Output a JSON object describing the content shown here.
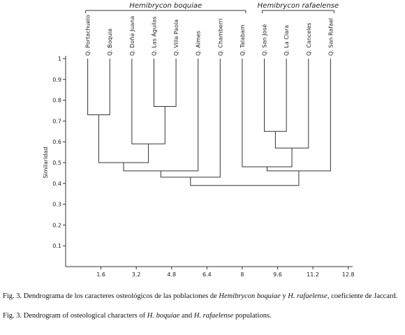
{
  "chart_data": {
    "type": "dendrogram",
    "ylabel": "Similaridad",
    "leaves": [
      "Q. Portachuelo",
      "Q. Boquia",
      "Q. Doña Juana",
      "Q. Las Águilas",
      "Q. Villa Paola",
      "Q. Aimes",
      "Q. Chamberri",
      "Q. Talabam",
      "Q. San José",
      "Q. La Clara",
      "Q. Canceles",
      "Q. San Rafael"
    ],
    "merges": [
      {
        "children": [
          0,
          1
        ],
        "height": 0.73
      },
      {
        "children": [
          3,
          4
        ],
        "height": 0.77
      },
      {
        "children": [
          2,
          13
        ],
        "height": 0.59
      },
      {
        "children": [
          12,
          14
        ],
        "height": 0.5
      },
      {
        "children": [
          15,
          5
        ],
        "height": 0.46
      },
      {
        "children": [
          16,
          6
        ],
        "height": 0.43
      },
      {
        "children": [
          8,
          9
        ],
        "height": 0.65
      },
      {
        "children": [
          18,
          10
        ],
        "height": 0.57
      },
      {
        "children": [
          7,
          19
        ],
        "height": 0.48
      },
      {
        "children": [
          20,
          11
        ],
        "height": 0.46
      },
      {
        "children": [
          17,
          21
        ],
        "height": 0.39
      }
    ],
    "groups": [
      {
        "label": "Hemibrycon boquiae",
        "first": 0,
        "last": 7
      },
      {
        "label": "Hemibrycon rafaelense",
        "first": 8,
        "last": 11
      }
    ],
    "xlim": [
      0,
      13
    ],
    "xticks": [
      1.6,
      3.2,
      4.8,
      6.4,
      8,
      9.6,
      11.2,
      12.8
    ],
    "ylim": [
      0,
      1
    ],
    "yticks": [
      0.1,
      0.2,
      0.3,
      0.4,
      0.5,
      0.6,
      0.7,
      0.8,
      0.9,
      1
    ]
  },
  "captions": [
    {
      "segments": [
        "Fig. 3. Dendrograma de los caracteres osteológicos de las poblaciones de ",
        "Hemibrycon boquiae",
        " y ",
        "H. rafaelense",
        ", coeficiente de Jaccard."
      ]
    },
    {
      "segments": [
        "Fig. 3. Dendrogram of osteological characters of ",
        "H. boquiae",
        " and ",
        "H. rafaelense",
        " populations."
      ]
    }
  ]
}
